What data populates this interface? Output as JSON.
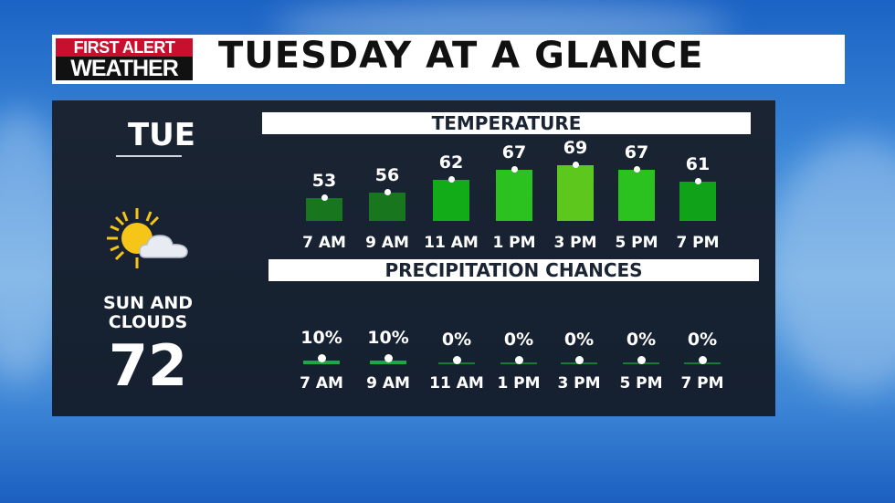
{
  "header": {
    "logo_top": "FIRST ALERT",
    "logo_bottom": "WEATHER",
    "title": "TUESDAY AT A GLANCE"
  },
  "day": {
    "name": "TUE",
    "icon": "sun-and-cloud-icon",
    "condition_line1": "SUN AND",
    "condition_line2": "CLOUDS",
    "high": "72"
  },
  "temperature": {
    "heading": "TEMPERATURE",
    "items": [
      {
        "time": "7 AM",
        "value": 53,
        "color": "#17761e"
      },
      {
        "time": "9 AM",
        "value": 56,
        "color": "#17761e"
      },
      {
        "time": "11 AM",
        "value": 62,
        "color": "#12ac18"
      },
      {
        "time": "1 PM",
        "value": 67,
        "color": "#2bc21f"
      },
      {
        "time": "3 PM",
        "value": 69,
        "color": "#5ec71e"
      },
      {
        "time": "5 PM",
        "value": 67,
        "color": "#2bc21f"
      },
      {
        "time": "7 PM",
        "value": 61,
        "color": "#10a319"
      }
    ]
  },
  "precipitation": {
    "heading": "PRECIPITATION CHANCES",
    "items": [
      {
        "time": "7 AM",
        "value": "10%"
      },
      {
        "time": "9 AM",
        "value": "10%"
      },
      {
        "time": "11 AM",
        "value": "0%"
      },
      {
        "time": "1 PM",
        "value": "0%"
      },
      {
        "time": "3 PM",
        "value": "0%"
      },
      {
        "time": "5 PM",
        "value": "0%"
      },
      {
        "time": "7 PM",
        "value": "0%"
      }
    ]
  }
}
